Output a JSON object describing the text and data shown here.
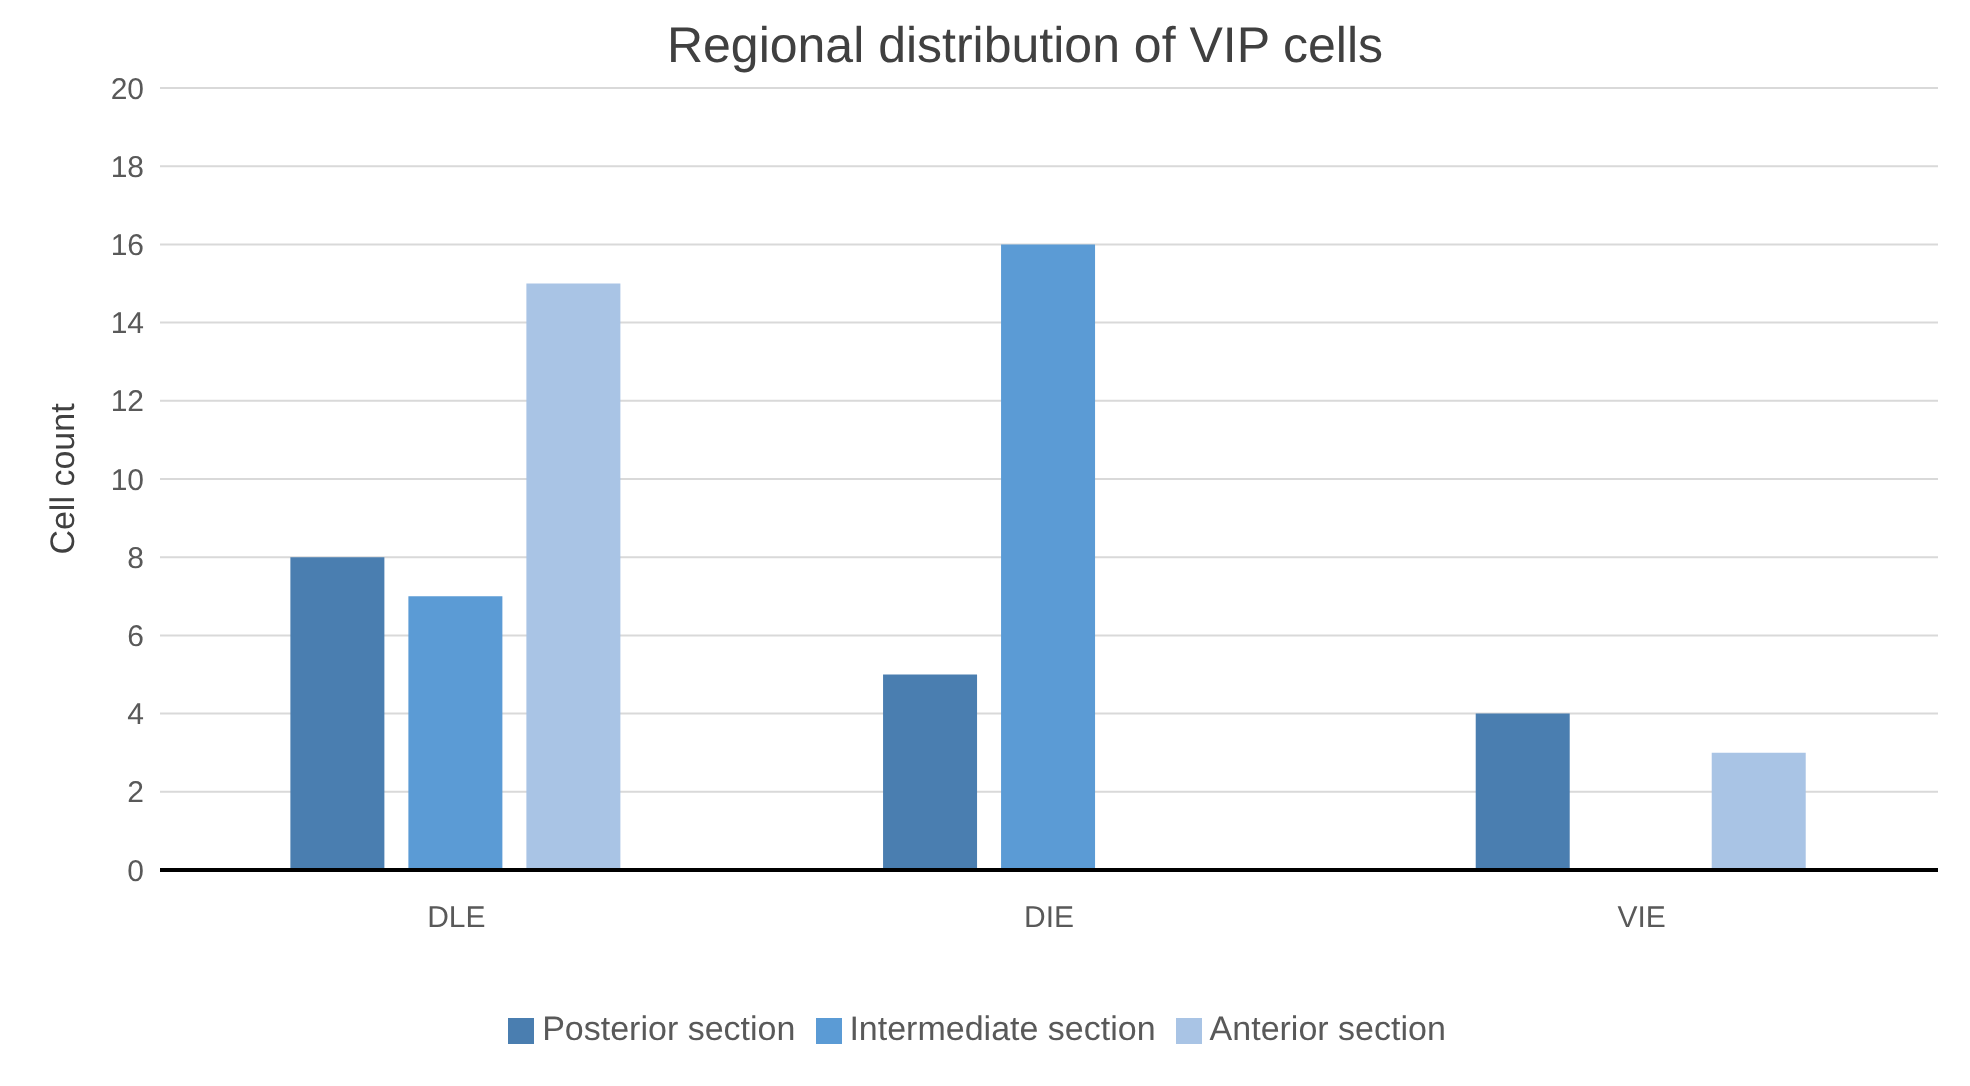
{
  "chart_data": {
    "type": "bar",
    "title": "Regional distribution of VIP cells",
    "ylabel": "Cell count",
    "categories": [
      "DLE",
      "DIE",
      "VIE"
    ],
    "series": [
      {
        "name": "Posterior section",
        "color": "#4a7eb0",
        "values": [
          8,
          5,
          4
        ]
      },
      {
        "name": "Intermediate section",
        "color": "#5b9bd5",
        "values": [
          7,
          16,
          0
        ]
      },
      {
        "name": "Anterior section",
        "color": "#a9c4e5",
        "values": [
          15,
          0,
          3
        ]
      }
    ],
    "ylim": [
      0,
      20
    ],
    "yticks": [
      0,
      2,
      4,
      6,
      8,
      10,
      12,
      14,
      16,
      18,
      20
    ],
    "grid": "y",
    "legend": "bottom"
  }
}
